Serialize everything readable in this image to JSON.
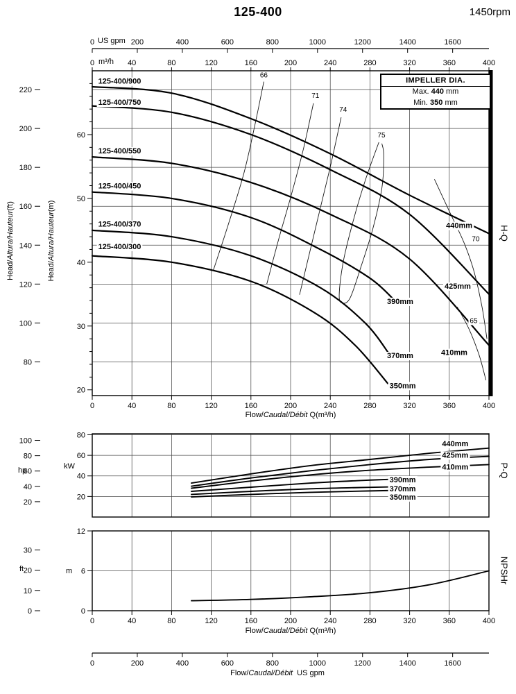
{
  "header": {
    "model": "125-400",
    "rpm": "1450rpm"
  },
  "impeller_box": {
    "title": "IMPELLER DIA.",
    "max_label": "Max.",
    "max_value": "440",
    "max_unit": "mm",
    "min_label": "Min.",
    "min_value": "350",
    "min_unit": "mm"
  },
  "side_labels": {
    "hq": "H-Q",
    "pq": "P-Q",
    "npshr": "NPSHr"
  },
  "axis_titles": {
    "flow_en": "Flow/",
    "flow_intl": "Caudal/Débit",
    "flow_m3h_suffix": " Q(m³/h)",
    "flow_usgpm_suffix": "  US gpm",
    "head_en": "Head/",
    "head_intl": "Altura/Hauteur",
    "head_ft_suffix": "(ft)",
    "head_m_suffix": "(m)",
    "top_gpm_unit": "US gpm",
    "top_m3h_unit": "m³/h",
    "hp_unit": "hp",
    "kw_unit": "kW",
    "ft_unit": "ft",
    "m_unit": "m"
  },
  "chart_data": [
    {
      "type": "line",
      "name": "H-Q head-flow curves",
      "x_axis": {
        "label": "Flow/Caudal/Débit Q(m³/h)",
        "min": 0,
        "max": 400,
        "ticks": [
          0,
          40,
          80,
          120,
          160,
          200,
          240,
          280,
          320,
          360,
          400
        ]
      },
      "x_axis_gpm": {
        "unit": "US gpm",
        "gpm_per_m3h": 4.4029,
        "ticks": [
          0,
          200,
          400,
          600,
          800,
          1000,
          1200,
          1400,
          1600
        ]
      },
      "y_axis_m": {
        "label": "Head/Altura/Hauteur(m)",
        "min": 19.1,
        "max": 70,
        "ticks": [
          20,
          30,
          40,
          50,
          60
        ],
        "minor_step": 2
      },
      "y_axis_ft": {
        "label": "Head/Altura/Hauteur(ft)",
        "ft_per_m": 3.2808,
        "ticks": [
          80,
          100,
          120,
          140,
          160,
          180,
          200,
          220
        ]
      },
      "series": [
        {
          "model": "125-400/900",
          "diameter": "440mm",
          "points": [
            [
              0,
              67.5
            ],
            [
              80,
              66.5
            ],
            [
              160,
              62.5
            ],
            [
              240,
              57
            ],
            [
              320,
              50.5
            ],
            [
              400,
              44.5
            ]
          ],
          "model_label_at": [
            6,
            68.4
          ],
          "dia_label_at": [
            370,
            45.8
          ]
        },
        {
          "model": "125-400/750",
          "diameter": "425mm",
          "points": [
            [
              0,
              64.5
            ],
            [
              80,
              63.5
            ],
            [
              160,
              60
            ],
            [
              240,
              54.5
            ],
            [
              320,
              47.5
            ],
            [
              400,
              35
            ]
          ],
          "model_label_at": [
            6,
            65.1
          ],
          "dia_label_at": [
            368.5,
            36.3
          ]
        },
        {
          "model": "125-400/550",
          "diameter": "410mm",
          "points": [
            [
              0,
              56.5
            ],
            [
              80,
              55.5
            ],
            [
              160,
              52.5
            ],
            [
              240,
              47.5
            ],
            [
              320,
              40.5
            ],
            [
              400,
              27
            ]
          ],
          "model_label_at": [
            6,
            57.5
          ],
          "dia_label_at": [
            365,
            25.9
          ]
        },
        {
          "model": "125-400/450",
          "diameter": "390mm",
          "points": [
            [
              0,
              51
            ],
            [
              80,
              50
            ],
            [
              160,
              47
            ],
            [
              230,
              42
            ],
            [
              280,
              37.5
            ],
            [
              305,
              34
            ]
          ],
          "model_label_at": [
            6,
            52
          ],
          "dia_label_at": [
            310.5,
            33.9
          ]
        },
        {
          "model": "125-400/370",
          "diameter": "370mm",
          "points": [
            [
              0,
              45
            ],
            [
              80,
              44
            ],
            [
              160,
              41
            ],
            [
              230,
              36
            ],
            [
              275,
              30.5
            ],
            [
              300,
              25.5
            ]
          ],
          "model_label_at": [
            6,
            46
          ],
          "dia_label_at": [
            310.5,
            25.4
          ]
        },
        {
          "model": "125-400/300",
          "diameter": "350mm",
          "points": [
            [
              0,
              41
            ],
            [
              80,
              40
            ],
            [
              160,
              37
            ],
            [
              225,
              32
            ],
            [
              265,
              27
            ],
            [
              298,
              21
            ]
          ],
          "model_label_at": [
            6,
            42.5
          ],
          "dia_label_at": [
            313,
            20.7
          ]
        }
      ],
      "efficiency": [
        {
          "label": "66",
          "label_at": [
            173,
            69.3
          ],
          "points": [
            [
              173,
              68.3
            ],
            [
              164,
              61.5
            ],
            [
              153,
              54
            ],
            [
              138,
              46.3
            ],
            [
              122,
              38.7
            ]
          ]
        },
        {
          "label": "71",
          "label_at": [
            225,
            66.1
          ],
          "points": [
            [
              223,
              64.9
            ],
            [
              213,
              57.8
            ],
            [
              201,
              50.7
            ],
            [
              188,
              43.6
            ],
            [
              176,
              36.6
            ]
          ]
        },
        {
          "label": "74",
          "label_at": [
            253,
            63.9
          ],
          "points": [
            [
              251,
              62.7
            ],
            [
              241,
              55.6
            ],
            [
              230,
              48.5
            ],
            [
              219,
              41.4
            ],
            [
              209,
              34.9
            ]
          ]
        },
        {
          "label": "75",
          "label_at": [
            291.6,
            59.9
          ],
          "points": [
            [
              289,
              58.8
            ],
            [
              275,
              52.7
            ],
            [
              263,
              46.4
            ],
            [
              253,
              40
            ],
            [
              249,
              34.9
            ],
            [
              252,
              33.6
            ],
            [
              260,
              34.4
            ],
            [
              271,
              39.3
            ],
            [
              283,
              45.3
            ],
            [
              292,
              51.6
            ],
            [
              294,
              56.7
            ],
            [
              292,
              58.6
            ]
          ]
        },
        {
          "label": "70",
          "label_at": [
            386.7,
            43.6
          ],
          "points": [
            [
              345,
              53
            ],
            [
              360,
              48
            ],
            [
              375,
              43
            ],
            [
              385,
              38.5
            ],
            [
              393,
              33
            ],
            [
              398,
              28
            ]
          ]
        },
        {
          "label": "65",
          "label_at": [
            384.6,
            30.8
          ],
          "points": [
            [
              368,
              33
            ],
            [
              380,
              29.5
            ],
            [
              390,
              25.5
            ],
            [
              397,
              21.5
            ]
          ]
        }
      ]
    },
    {
      "type": "line",
      "name": "P-Q power-flow curves",
      "y_axis_kw": {
        "label": "kW",
        "min": 0,
        "max": 81,
        "ticks": [
          20,
          40,
          60,
          80
        ]
      },
      "y_axis_hp": {
        "label": "hp",
        "kw_per_hp": 0.7457,
        "ticks": [
          20,
          40,
          60,
          80,
          100
        ]
      },
      "series": [
        {
          "diameter": "440mm",
          "points": [
            [
              100,
              33
            ],
            [
              160,
              42
            ],
            [
              220,
              50
            ],
            [
              280,
              56
            ],
            [
              340,
              62
            ],
            [
              400,
              67
            ]
          ],
          "dia_label_at": [
            366,
            71.5
          ]
        },
        {
          "diameter": "425mm",
          "points": [
            [
              100,
              30
            ],
            [
              160,
              38
            ],
            [
              220,
              45
            ],
            [
              280,
              51
            ],
            [
              340,
              56
            ],
            [
              400,
              59
            ]
          ],
          "dia_label_at": [
            366,
            60.5
          ]
        },
        {
          "diameter": "410mm",
          "points": [
            [
              100,
              28
            ],
            [
              160,
              35
            ],
            [
              220,
              41
            ],
            [
              280,
              45.5
            ],
            [
              340,
              48.5
            ],
            [
              400,
              51
            ]
          ],
          "dia_label_at": [
            366,
            49
          ]
        },
        {
          "diameter": "390mm",
          "points": [
            [
              100,
              25
            ],
            [
              160,
              29
            ],
            [
              220,
              33
            ],
            [
              270,
              35.5
            ],
            [
              310,
              37
            ]
          ],
          "dia_label_at": [
            313,
            36.5
          ]
        },
        {
          "diameter": "370mm",
          "points": [
            [
              100,
              22
            ],
            [
              160,
              25
            ],
            [
              220,
              27.5
            ],
            [
              270,
              28.7
            ],
            [
              310,
              29.5
            ]
          ],
          "dia_label_at": [
            313,
            27.6
          ]
        },
        {
          "diameter": "350mm",
          "points": [
            [
              100,
              19.5
            ],
            [
              160,
              22
            ],
            [
              220,
              24
            ],
            [
              270,
              25.2
            ],
            [
              310,
              26
            ]
          ],
          "dia_label_at": [
            313,
            19.7
          ]
        }
      ]
    },
    {
      "type": "line",
      "name": "NPSHr curve",
      "x_axis": {
        "label": "Flow/Caudal/Débit Q(m³/h)",
        "ticks": [
          0,
          40,
          80,
          120,
          160,
          200,
          240,
          280,
          320,
          360,
          400
        ]
      },
      "y_axis_m": {
        "label": "m",
        "min": 0,
        "max": 12,
        "ticks": [
          0,
          6,
          12
        ]
      },
      "y_axis_ft": {
        "label": "ft",
        "ft_per_m": 3.2808,
        "ticks": [
          0,
          10,
          20,
          30
        ]
      },
      "series": [
        {
          "name": "NPSHr",
          "points": [
            [
              100,
              1.5
            ],
            [
              160,
              1.7
            ],
            [
              220,
              2.1
            ],
            [
              280,
              2.7
            ],
            [
              340,
              3.9
            ],
            [
              400,
              6
            ]
          ]
        }
      ]
    }
  ],
  "bottom_gpm_axis": {
    "label": "Flow/Caudal/Débit US gpm",
    "gpm_per_m3h": 4.4029,
    "ticks": [
      0,
      200,
      400,
      600,
      800,
      1000,
      1200,
      1400,
      1600
    ]
  }
}
